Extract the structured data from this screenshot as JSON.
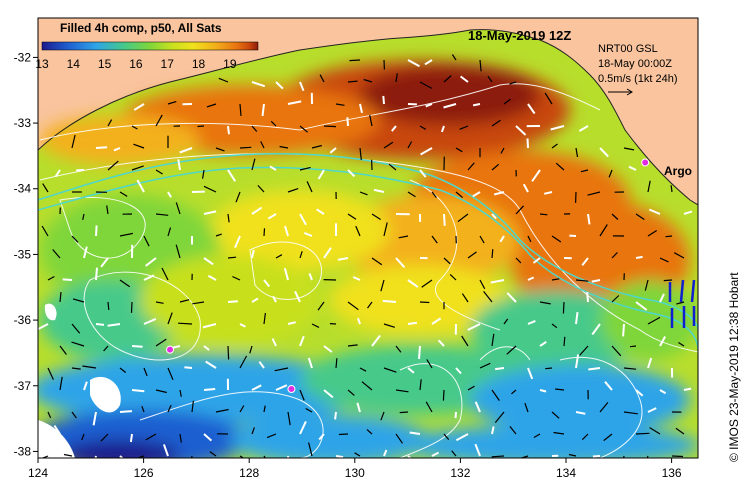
{
  "map": {
    "title": "18-May-2019 12Z",
    "product": "Filled 4h comp, p50, All Sats",
    "legend_lines": [
      "NRT00 GSL",
      "18-May 00:00Z",
      "0.5m/s (1kt 24h)"
    ],
    "credit": "© IMOS 23-May-2019 12:38 Hobart",
    "argo_label": "Argo",
    "colorbar_ticks": [
      "13",
      "14",
      "15",
      "16",
      "17",
      "18",
      "19"
    ],
    "colorbar_range": [
      13,
      19.9
    ],
    "lon_ticks": [
      "124",
      "126",
      "128",
      "130",
      "132",
      "134",
      "136"
    ],
    "lat_ticks": [
      "-32",
      "-33",
      "-34",
      "-35",
      "-36",
      "-37",
      "-38"
    ],
    "lon_range": [
      124,
      136.5
    ],
    "lat_range": [
      -31.4,
      -38.1
    ],
    "argo_floats": [
      {
        "lon": 135.5,
        "lat": -33.6
      },
      {
        "lon": 126.5,
        "lat": -36.45
      },
      {
        "lon": 128.8,
        "lat": -37.05
      }
    ]
  },
  "colors": {
    "land": "#f9c49e",
    "background": "#ffffff",
    "contour": "#ffffff",
    "isobath": "#4fd7c9",
    "argo": "#e22ce2",
    "vector": "#000000",
    "sst_scale": [
      "#1b1a8d",
      "#1f5fd0",
      "#2fa4e8",
      "#46c98a",
      "#7fd63a",
      "#c8e01f",
      "#f0e11c",
      "#f3b11a",
      "#e87510",
      "#c8460c",
      "#8c1b0a"
    ]
  }
}
